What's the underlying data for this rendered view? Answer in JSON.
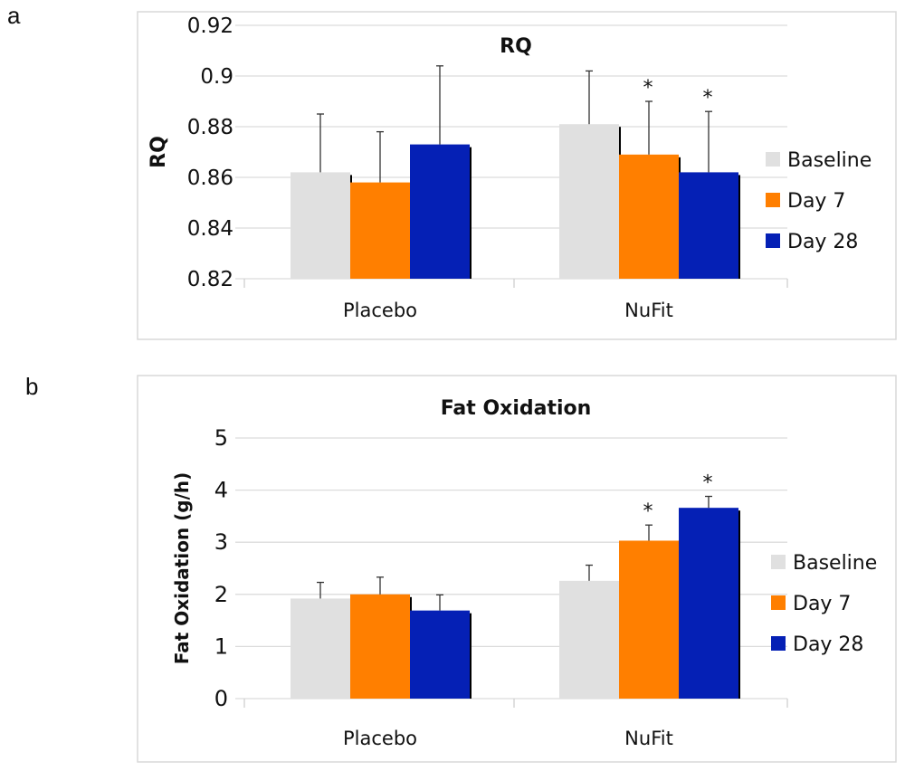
{
  "panels": [
    {
      "label": "a"
    },
    {
      "label": "b"
    }
  ],
  "chart_data": [
    {
      "type": "bar",
      "title": "RQ",
      "xlabel": "",
      "ylabel": "RQ",
      "ylim": [
        0.82,
        0.92
      ],
      "yticks": [
        "0.82",
        "0.84",
        "0.86",
        "0.88",
        "0.9",
        "0.92"
      ],
      "ytick_values": [
        0.82,
        0.84,
        0.86,
        0.88,
        0.9,
        0.92
      ],
      "categories": [
        "Placebo",
        "NuFit"
      ],
      "grid": true,
      "legend_position": "right",
      "series": [
        {
          "name": "Baseline",
          "color": "#e0e0e0",
          "values": [
            0.862,
            0.881
          ],
          "error_upper": [
            0.885,
            0.902
          ],
          "significant": [
            false,
            false
          ]
        },
        {
          "name": "Day 7",
          "color": "#ff7f00",
          "values": [
            0.858,
            0.869
          ],
          "error_upper": [
            0.878,
            0.89
          ],
          "significant": [
            false,
            true
          ]
        },
        {
          "name": "Day 28",
          "color": "#0520b5",
          "values": [
            0.873,
            0.862
          ],
          "error_upper": [
            0.904,
            0.886
          ],
          "significant": [
            false,
            true
          ]
        }
      ],
      "significance_marker": "*"
    },
    {
      "type": "bar",
      "title": "Fat Oxidation",
      "xlabel": "",
      "ylabel": "Fat Oxidation (g/h)",
      "ylim": [
        0,
        5
      ],
      "yticks": [
        "0",
        "1",
        "2",
        "3",
        "4",
        "5"
      ],
      "ytick_values": [
        0,
        1,
        2,
        3,
        4,
        5
      ],
      "categories": [
        "Placebo",
        "NuFit"
      ],
      "grid": true,
      "legend_position": "right",
      "series": [
        {
          "name": "Baseline",
          "color": "#e0e0e0",
          "values": [
            1.92,
            2.26
          ],
          "error_upper": [
            2.23,
            2.56
          ],
          "significant": [
            false,
            false
          ]
        },
        {
          "name": "Day 7",
          "color": "#ff7f00",
          "values": [
            2.0,
            3.03
          ],
          "error_upper": [
            2.33,
            3.33
          ],
          "significant": [
            false,
            true
          ]
        },
        {
          "name": "Day 28",
          "color": "#0520b5",
          "values": [
            1.69,
            3.66
          ],
          "error_upper": [
            1.99,
            3.88
          ],
          "significant": [
            false,
            true
          ]
        }
      ],
      "significance_marker": "*"
    }
  ]
}
